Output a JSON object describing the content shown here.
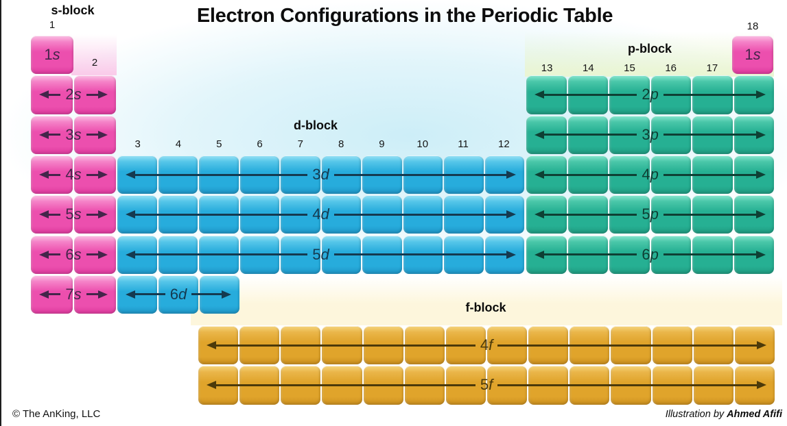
{
  "title": "Electron Configurations in the Periodic Table",
  "footer": {
    "copyright": "© The AnKing, LLC",
    "credit_prefix": "Illustration by ",
    "credit_name": "Ahmed Afifi"
  },
  "palette": {
    "background_sky": "#caedf7",
    "s_glow": "#fac7e8",
    "p_glow": "#eaf5d2",
    "f_glow": "#fdf6db",
    "left_edge": "#1d1d1d"
  },
  "blocks": {
    "s": {
      "label": "s-block",
      "group_numbers": [
        "1",
        "2"
      ],
      "colors": {
        "highlight": "#fbc3e5",
        "upper": "#f583c8",
        "main": "#ec4fae",
        "lower": "#de3a9e",
        "arrow": "#44254a"
      },
      "rows": [
        {
          "n": "1",
          "l": "s",
          "cells": 1,
          "arrow": false
        },
        {
          "n": "2",
          "l": "s",
          "cells": 2,
          "arrow": true
        },
        {
          "n": "3",
          "l": "s",
          "cells": 2,
          "arrow": true
        },
        {
          "n": "4",
          "l": "s",
          "cells": 2,
          "arrow": true
        },
        {
          "n": "5",
          "l": "s",
          "cells": 2,
          "arrow": true
        },
        {
          "n": "6",
          "l": "s",
          "cells": 2,
          "arrow": true
        },
        {
          "n": "7",
          "l": "s",
          "cells": 2,
          "arrow": true
        }
      ]
    },
    "d": {
      "label": "d-block",
      "group_numbers": [
        "3",
        "4",
        "5",
        "6",
        "7",
        "8",
        "9",
        "10",
        "11",
        "12"
      ],
      "colors": {
        "highlight": "#9ae3f6",
        "upper": "#56c6e9",
        "main": "#27acdc",
        "lower": "#1e95c6",
        "arrow": "#153a50"
      },
      "rows": [
        {
          "n": "3",
          "l": "d",
          "cells": 10,
          "arrow": true
        },
        {
          "n": "4",
          "l": "d",
          "cells": 10,
          "arrow": true
        },
        {
          "n": "5",
          "l": "d",
          "cells": 10,
          "arrow": true
        },
        {
          "n": "6",
          "l": "d",
          "cells": 3,
          "arrow": true
        }
      ]
    },
    "p": {
      "label": "p-block",
      "group_numbers": [
        "13",
        "14",
        "15",
        "16",
        "17"
      ],
      "group_18": "18",
      "helium_cell": {
        "n": "1",
        "l": "s"
      },
      "colors": {
        "highlight": "#8ae7d1",
        "upper": "#4ac7a9",
        "main": "#26b093",
        "lower": "#1f9a80",
        "arrow": "#0e4034"
      },
      "rows": [
        {
          "n": "2",
          "l": "p",
          "cells": 6,
          "arrow": true
        },
        {
          "n": "3",
          "l": "p",
          "cells": 6,
          "arrow": true
        },
        {
          "n": "4",
          "l": "p",
          "cells": 6,
          "arrow": true
        },
        {
          "n": "5",
          "l": "p",
          "cells": 6,
          "arrow": true
        },
        {
          "n": "6",
          "l": "p",
          "cells": 6,
          "arrow": true
        }
      ]
    },
    "f": {
      "label": "f-block",
      "colors": {
        "highlight": "#f6d67f",
        "upper": "#eab64a",
        "main": "#e0a42b",
        "lower": "#cb8f1e",
        "arrow": "#4c3a0a"
      },
      "rows": [
        {
          "n": "4",
          "l": "f",
          "cells": 14,
          "arrow": true
        },
        {
          "n": "5",
          "l": "f",
          "cells": 14,
          "arrow": true
        }
      ]
    }
  }
}
